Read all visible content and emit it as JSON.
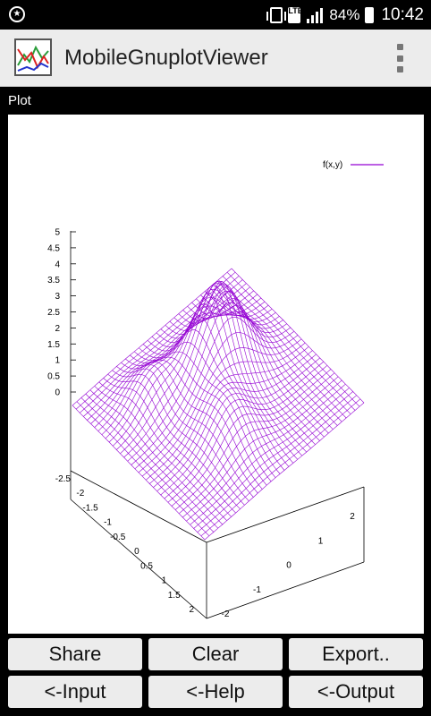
{
  "status": {
    "battery": "84%",
    "time": "10:42",
    "network": "LTE",
    "left_icon": "accessibility-icon"
  },
  "app": {
    "title": "MobileGnuplotViewer"
  },
  "plot": {
    "label": "Plot"
  },
  "chart_data": {
    "type": "surface",
    "function": "f(x,y)",
    "legend": "f(x,y)",
    "legend_color": "#9400d3",
    "z_ticks": [
      "5",
      "4.5",
      "4",
      "3.5",
      "3",
      "2.5",
      "2",
      "1.5",
      "1",
      "0.5",
      "0"
    ],
    "x_ticks": [
      "-2.5",
      "-2",
      "-1.5",
      "-1",
      "-0.5",
      "0",
      "0.5",
      "1",
      "1.5",
      "2"
    ],
    "y_ticks": [
      "-2",
      "-1",
      "0",
      "1",
      "2"
    ],
    "zlim": [
      0,
      5
    ],
    "xlim": [
      -2.5,
      2.5
    ],
    "ylim": [
      -2.5,
      2.5
    ]
  },
  "buttons": {
    "share": "Share",
    "clear": "Clear",
    "export": "Export..",
    "input": "<-Input",
    "help": "<-Help",
    "output": "<-Output"
  }
}
